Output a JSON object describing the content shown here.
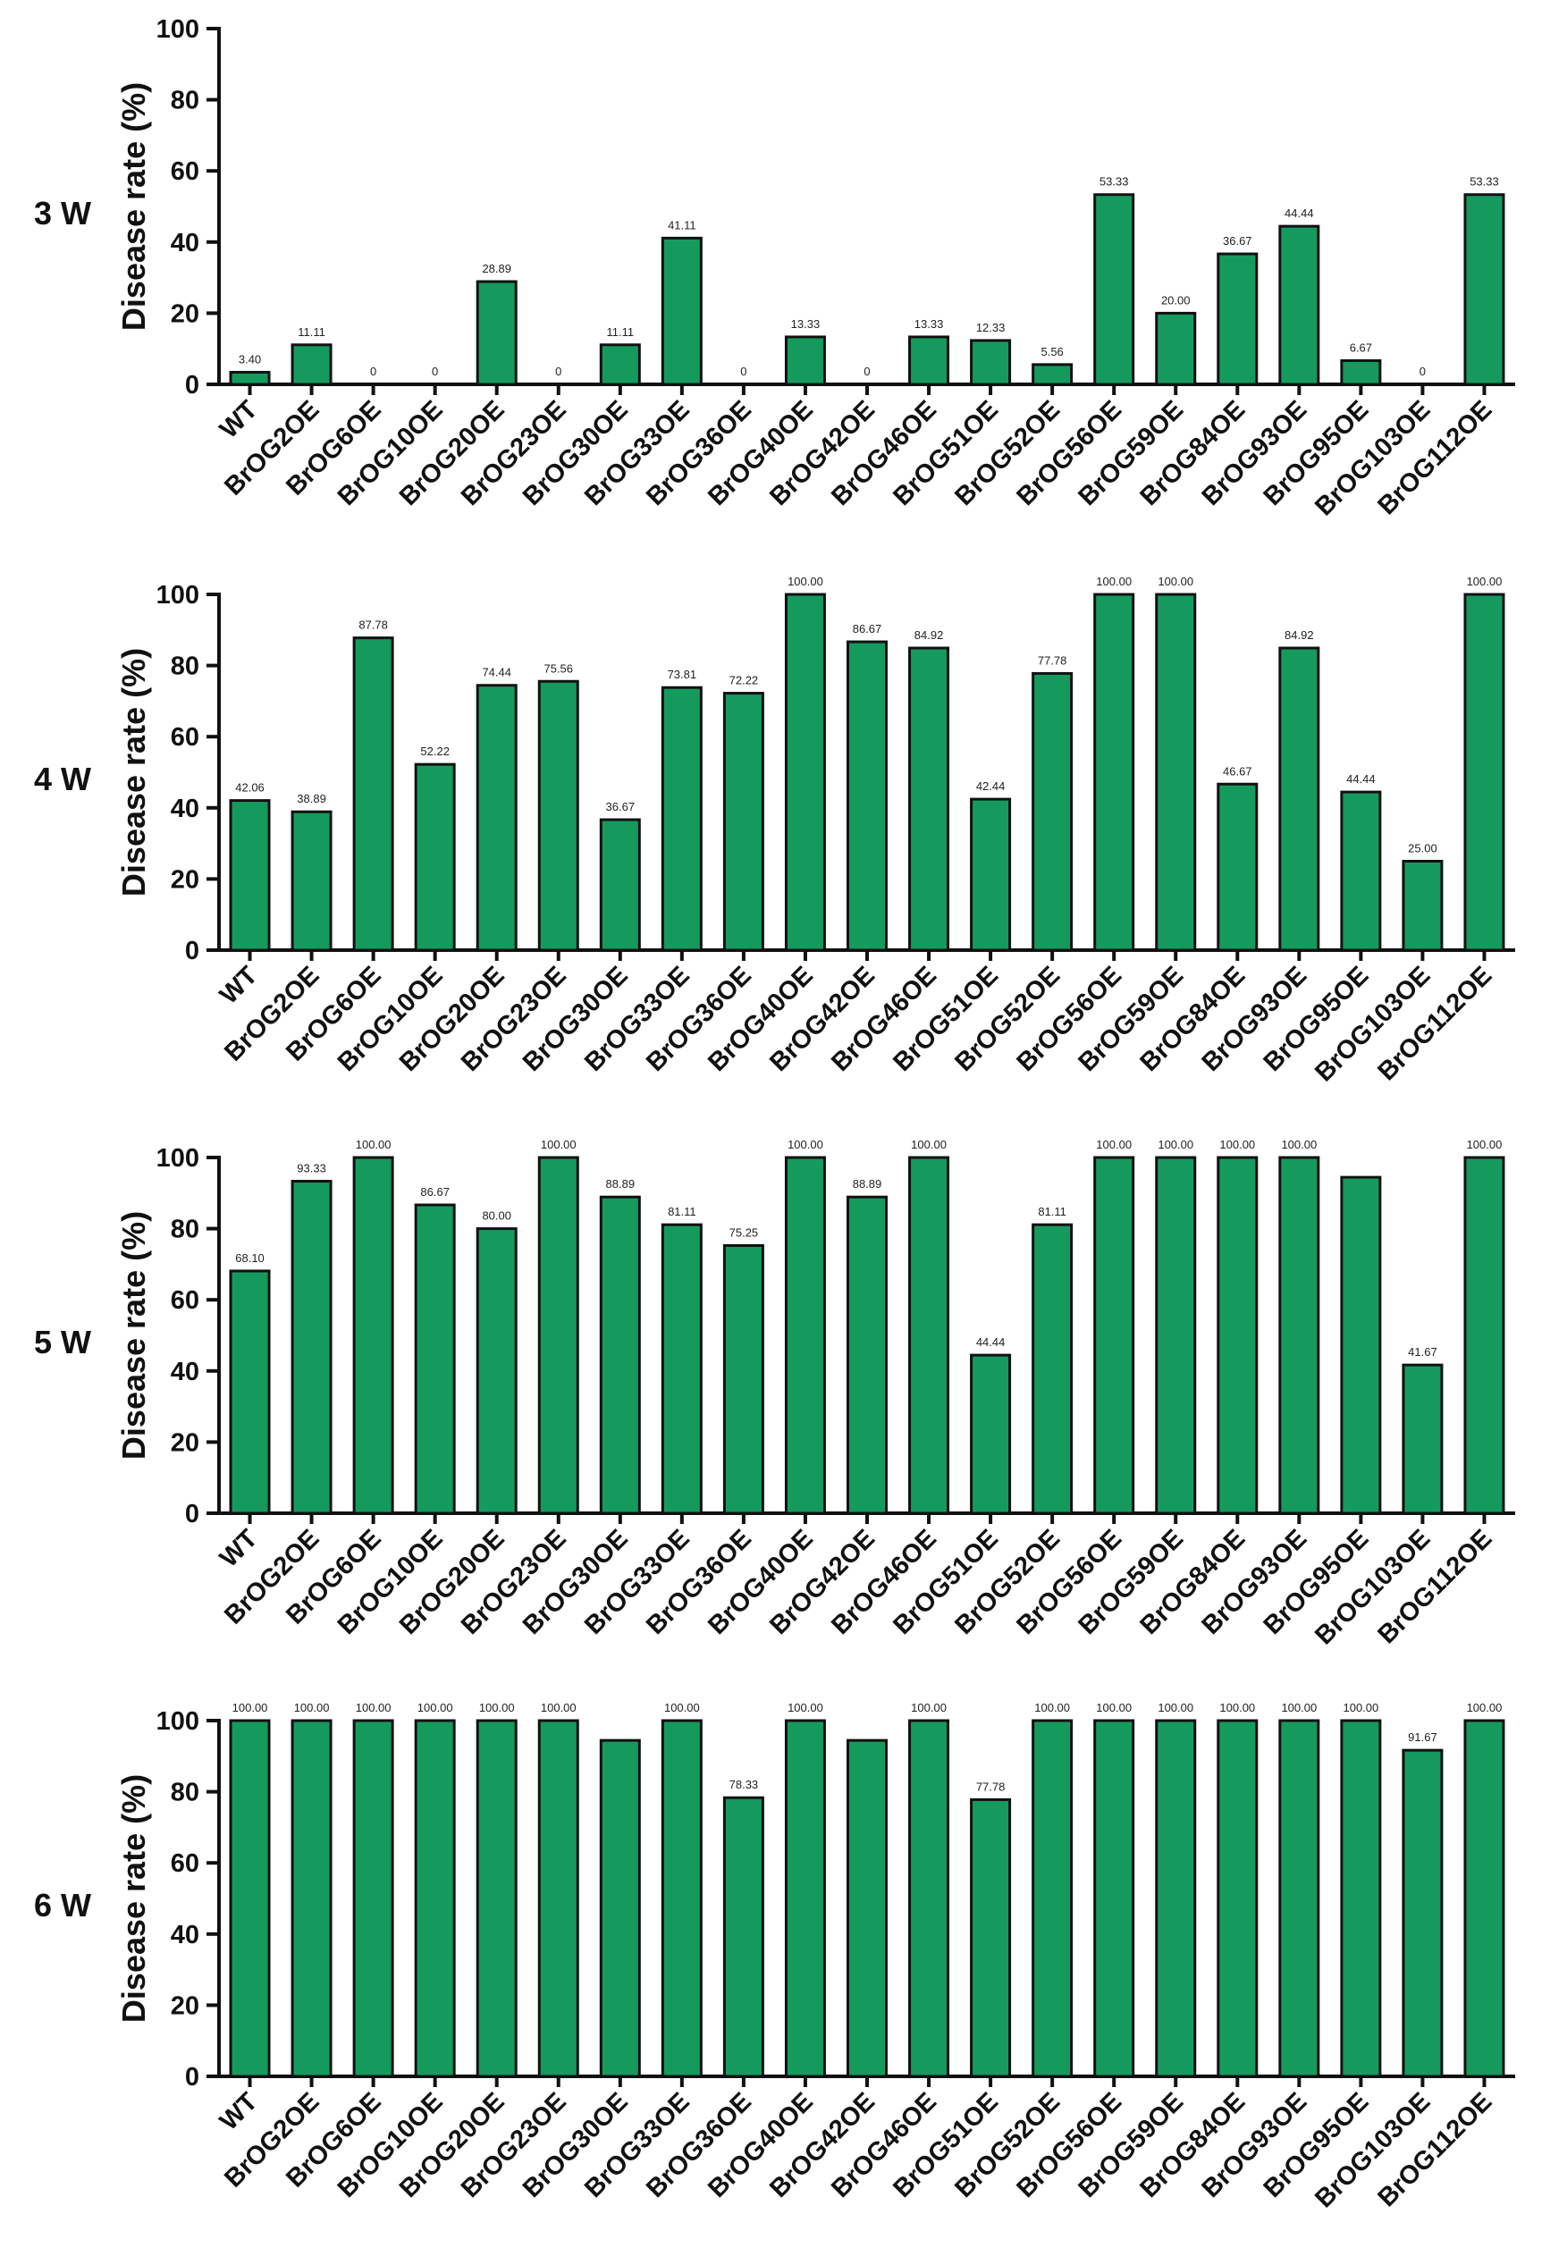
{
  "chart_data": [
    {
      "type": "bar",
      "panel_label": "3 W",
      "ylabel": "Disease rate (%)",
      "ylim": [
        0,
        100
      ],
      "yticks": [
        "0",
        "20",
        "40",
        "60",
        "80",
        "100"
      ],
      "categories": [
        "WT",
        "BrOG2OE",
        "BrOG6OE",
        "BrOG10OE",
        "BrOG20OE",
        "BrOG23OE",
        "BrOG30OE",
        "BrOG33OE",
        "BrOG36OE",
        "BrOG40OE",
        "BrOG42OE",
        "BrOG46OE",
        "BrOG51OE",
        "BrOG52OE",
        "BrOG56OE",
        "BrOG59OE",
        "BrOG84OE",
        "BrOG93OE",
        "BrOG95OE",
        "BrOG103OE",
        "BrOG112OE"
      ],
      "values": [
        3.4,
        11.11,
        0,
        0,
        28.89,
        0,
        11.11,
        41.11,
        0,
        13.33,
        0,
        13.33,
        12.33,
        5.56,
        53.33,
        20.0,
        36.67,
        44.44,
        6.67,
        0,
        53.33
      ],
      "data_labels": [
        "3.40",
        "11.11",
        "0",
        "0",
        "28.89",
        "0",
        "11.11",
        "41.11",
        "0",
        "13.33",
        "0",
        "13.33",
        "12.33",
        "5.56",
        "53.33",
        "20.00",
        "36.67",
        "44.44",
        "6.67",
        "0",
        "53.33"
      ],
      "bar_color": "#159a5e"
    },
    {
      "type": "bar",
      "panel_label": "4 W",
      "ylabel": "Disease rate (%)",
      "ylim": [
        0,
        100
      ],
      "yticks": [
        "0",
        "20",
        "40",
        "60",
        "80",
        "100"
      ],
      "categories": [
        "WT",
        "BrOG2OE",
        "BrOG6OE",
        "BrOG10OE",
        "BrOG20OE",
        "BrOG23OE",
        "BrOG30OE",
        "BrOG33OE",
        "BrOG36OE",
        "BrOG40OE",
        "BrOG42OE",
        "BrOG46OE",
        "BrOG51OE",
        "BrOG52OE",
        "BrOG56OE",
        "BrOG59OE",
        "BrOG84OE",
        "BrOG93OE",
        "BrOG95OE",
        "BrOG103OE",
        "BrOG112OE"
      ],
      "values": [
        42.06,
        38.89,
        87.78,
        52.22,
        74.44,
        75.56,
        36.67,
        73.81,
        72.22,
        100.0,
        86.67,
        84.92,
        42.44,
        77.78,
        100.0,
        100.0,
        46.67,
        84.92,
        44.44,
        25.0,
        100.0
      ],
      "data_labels": [
        "42.06",
        "38.89",
        "87.78",
        "52.22",
        "74.44",
        "75.56",
        "36.67",
        "73.81",
        "72.22",
        "100.00",
        "86.67",
        "84.92",
        "42.44",
        "77.78",
        "100.00",
        "100.00",
        "46.67",
        "84.92",
        "44.44",
        "25.00",
        "100.00"
      ],
      "bar_color": "#159a5e"
    },
    {
      "type": "bar",
      "panel_label": "5 W",
      "ylabel": "Disease rate (%)",
      "ylim": [
        0,
        100
      ],
      "yticks": [
        "0",
        "20",
        "40",
        "60",
        "80",
        "100"
      ],
      "categories": [
        "WT",
        "BrOG2OE",
        "BrOG6OE",
        "BrOG10OE",
        "BrOG20OE",
        "BrOG23OE",
        "BrOG30OE",
        "BrOG33OE",
        "BrOG36OE",
        "BrOG40OE",
        "BrOG42OE",
        "BrOG46OE",
        "BrOG51OE",
        "BrOG52OE",
        "BrOG56OE",
        "BrOG59OE",
        "BrOG84OE",
        "BrOG93OE",
        "BrOG95OE",
        "BrOG103OE",
        "BrOG112OE"
      ],
      "values": [
        68.1,
        93.33,
        100.0,
        86.67,
        80.0,
        100.0,
        88.89,
        81.11,
        75.25,
        100.0,
        88.89,
        100.0,
        44.44,
        81.11,
        100.0,
        100.0,
        100.0,
        100.0,
        94.44,
        41.67,
        100.0
      ],
      "data_labels": [
        "68.10",
        "93.33",
        "100.00",
        "86.67",
        "80.00",
        "100.00",
        "88.89",
        "81.11",
        "75.25",
        "100.00",
        "88.89",
        "100.00",
        "44.44",
        "81.11",
        "100.00",
        "100.00",
        "100.00",
        "100.00",
        "",
        "41.67",
        "100.00"
      ],
      "bar_color": "#159a5e"
    },
    {
      "type": "bar",
      "panel_label": "6 W",
      "ylabel": "Disease rate (%)",
      "ylim": [
        0,
        100
      ],
      "yticks": [
        "0",
        "20",
        "40",
        "60",
        "80",
        "100"
      ],
      "categories": [
        "WT",
        "BrOG2OE",
        "BrOG6OE",
        "BrOG10OE",
        "BrOG20OE",
        "BrOG23OE",
        "BrOG30OE",
        "BrOG33OE",
        "BrOG36OE",
        "BrOG40OE",
        "BrOG42OE",
        "BrOG46OE",
        "BrOG51OE",
        "BrOG52OE",
        "BrOG56OE",
        "BrOG59OE",
        "BrOG84OE",
        "BrOG93OE",
        "BrOG95OE",
        "BrOG103OE",
        "BrOG112OE"
      ],
      "values": [
        100.0,
        100.0,
        100.0,
        100.0,
        100.0,
        100.0,
        94.44,
        100.0,
        78.33,
        100.0,
        94.44,
        100.0,
        77.78,
        100.0,
        100.0,
        100.0,
        100.0,
        100.0,
        100.0,
        91.67,
        100.0
      ],
      "data_labels": [
        "100.00",
        "100.00",
        "100.00",
        "100.00",
        "100.00",
        "100.00",
        "",
        "100.00",
        "78.33",
        "100.00",
        "",
        "100.00",
        "77.78",
        "100.00",
        "100.00",
        "100.00",
        "100.00",
        "100.00",
        "100.00",
        "91.67",
        "100.00"
      ],
      "bar_color": "#159a5e"
    }
  ]
}
